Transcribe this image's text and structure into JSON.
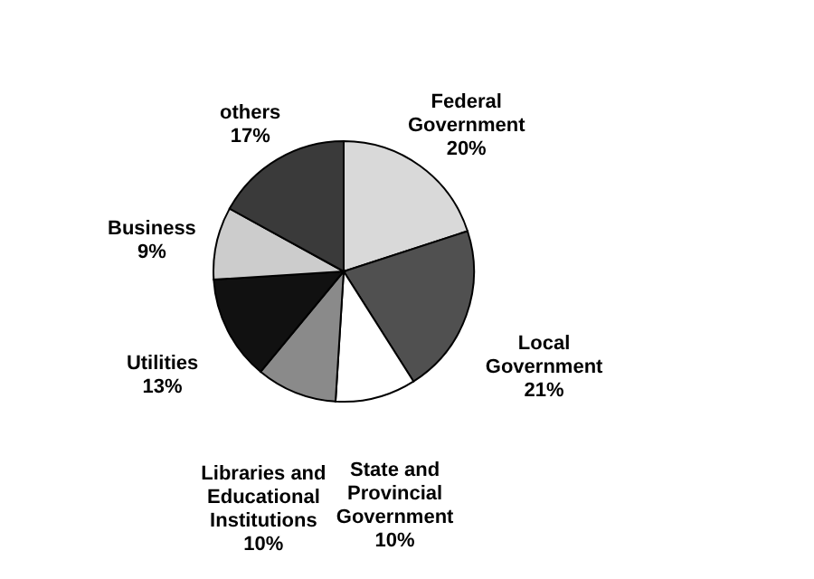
{
  "chart_data": {
    "type": "pie",
    "categories": [
      "Federal Government",
      "Local Government",
      "State and Provincial Government",
      "Libraries and Educational Institutions",
      "Utilities",
      "Business",
      "others"
    ],
    "values": [
      20,
      21,
      10,
      10,
      13,
      9,
      17
    ],
    "value_labels": [
      "20%",
      "21%",
      "10%",
      "10%",
      "13%",
      "9%",
      "17%"
    ],
    "colors": [
      "#d9d9d9",
      "#505050",
      "#ffffff",
      "#8a8a8a",
      "#111111",
      "#cccccc",
      "#3a3a3a"
    ]
  }
}
